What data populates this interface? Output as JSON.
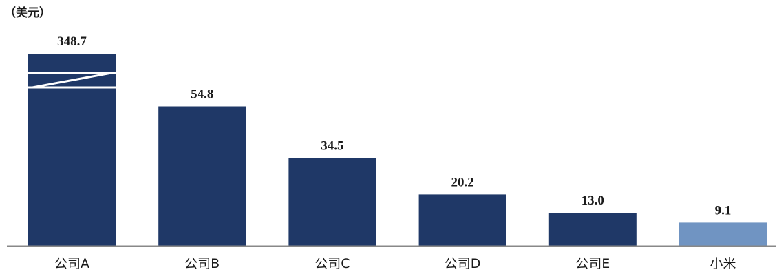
{
  "chart_data": {
    "type": "bar",
    "unit_label": "（美元）",
    "categories": [
      "公司A",
      "公司B",
      "公司C",
      "公司D",
      "公司E",
      "小米"
    ],
    "values": [
      348.7,
      54.8,
      34.5,
      20.2,
      13.0,
      9.1
    ],
    "value_labels": [
      "348.7",
      "54.8",
      "34.5",
      "20.2",
      "13.0",
      "9.1"
    ],
    "axis_break": {
      "series_index": 0,
      "description": "broken axis"
    },
    "bar_colors": [
      "#1f3867",
      "#1f3867",
      "#1f3867",
      "#1f3867",
      "#1f3867",
      "#7094c2"
    ],
    "axis_color": "#888888",
    "grid": false,
    "title": "",
    "xlabel": "",
    "ylabel": ""
  }
}
